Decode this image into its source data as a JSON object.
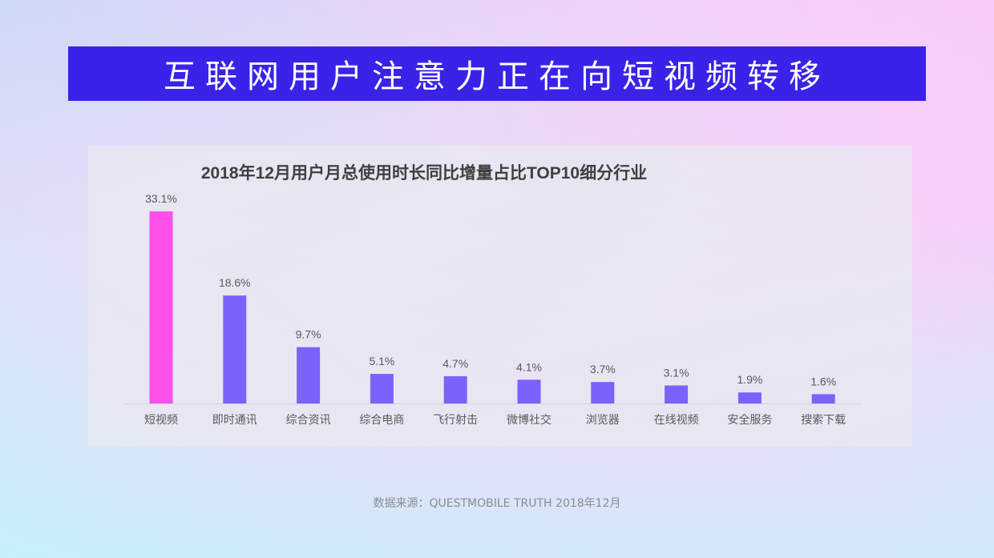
{
  "banner": {
    "title": "互联网用户注意力正在向短视频转移"
  },
  "chart_data": {
    "type": "bar",
    "title": "2018年12月用户月总使用时长同比增量占比TOP10细分行业",
    "categories": [
      "短视频",
      "即时通讯",
      "综合资讯",
      "综合电商",
      "飞行射击",
      "微博社交",
      "浏览器",
      "在线视频",
      "安全服务",
      "搜索下载"
    ],
    "values": [
      33.1,
      18.6,
      9.7,
      5.1,
      4.7,
      4.1,
      3.7,
      3.1,
      1.9,
      1.6
    ],
    "data_labels": [
      "33.1%",
      "18.6%",
      "9.7%",
      "5.1%",
      "4.7%",
      "4.1%",
      "3.7%",
      "3.1%",
      "1.9%",
      "1.6%"
    ],
    "value_unit": "%",
    "ylim": [
      0,
      33.1
    ],
    "grid": false,
    "colors": {
      "highlight": "#fc50e8",
      "default": "#7c62fc",
      "axis": "#d3d3dc",
      "label_text": "#595959",
      "title_text": "#3f3f3f"
    }
  },
  "footer": {
    "source": "数据来源：QUESTMOBILE TRUTH 2018年12月"
  }
}
